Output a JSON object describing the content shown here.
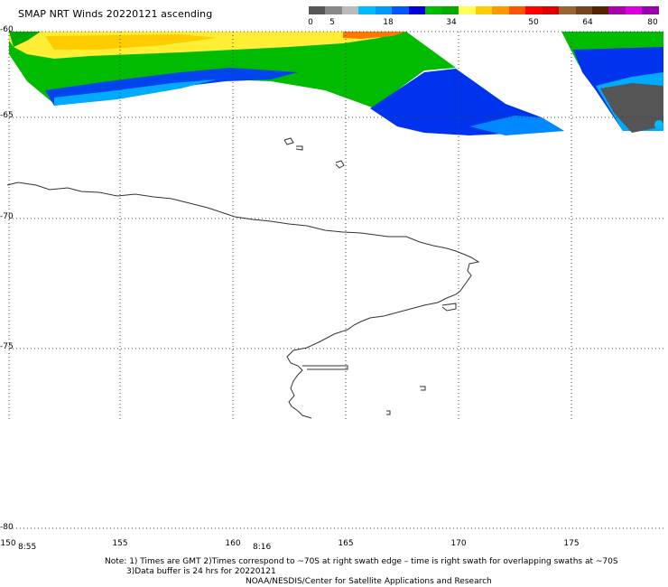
{
  "header": {
    "title": "SMAP NRT Winds 20220121 ascending"
  },
  "colorbar": {
    "tick_labels": [
      "0",
      "5",
      "18",
      "34",
      "50",
      "64",
      "80"
    ],
    "colors": [
      "#555555",
      "#888888",
      "#bbbbbb",
      "#00bbff",
      "#0099ff",
      "#0055ff",
      "#0000dd",
      "#00bb00",
      "#00aa00",
      "#ffff55",
      "#ffcc00",
      "#ff9900",
      "#ff5500",
      "#ff0000",
      "#dd0000",
      "#996633",
      "#774422",
      "#552200",
      "#aa00aa",
      "#dd00dd",
      "#9900aa"
    ]
  },
  "map": {
    "lat_labels": [
      "-60",
      "-65",
      "-70",
      "-75",
      "-80"
    ],
    "lon_labels": [
      "150",
      "155",
      "160",
      "165",
      "170",
      "175"
    ],
    "swath_times": [
      "8:55",
      "8:16"
    ]
  },
  "footer": {
    "note_line1": "Note: 1) Times are GMT 2)Times correspond to ~70S at right swath edge – time is right swath for overlapping swaths at ~70S",
    "note_line2": "3)Data buffer is 24 hrs for 20220121",
    "credit": "NOAA/NESDIS/Center for Satellite Applications and Research"
  }
}
